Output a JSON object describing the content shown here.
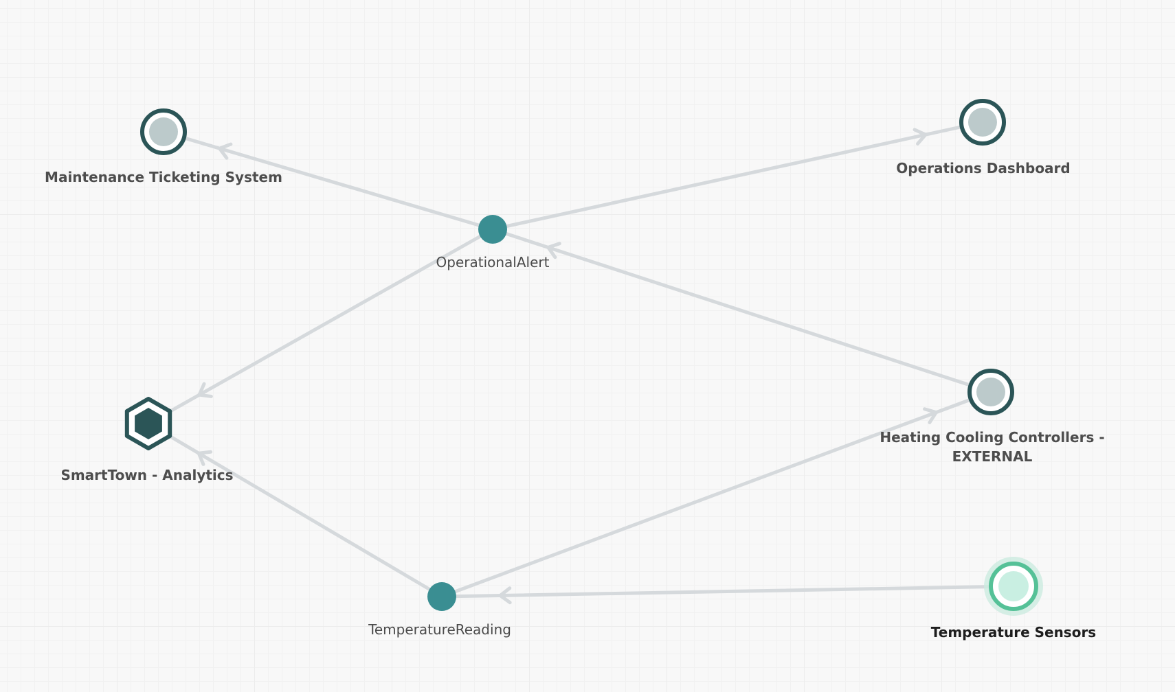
{
  "colors": {
    "edge": "#d5d9dc",
    "app_ring": "#2b5557",
    "app_fill": "#bccacb",
    "event": "#3a8e92",
    "selected_ring": "#55c197",
    "selected_fill": "#c9efe2",
    "selected_halo": "#ccebe0",
    "hex_fill": "#2b5557"
  },
  "nodes": {
    "maintenance": {
      "label": "Maintenance Ticketing System",
      "kind": "application"
    },
    "dashboard": {
      "label": "Operations Dashboard",
      "kind": "application"
    },
    "alert": {
      "label": "OperationalAlert",
      "kind": "event"
    },
    "smarttown": {
      "label": "SmartTown - Analytics",
      "kind": "hexagon"
    },
    "hvac": {
      "label": "Heating Cooling Controllers -\nEXTERNAL",
      "kind": "application"
    },
    "reading": {
      "label": "TemperatureReading",
      "kind": "event"
    },
    "sensors": {
      "label": "Temperature Sensors",
      "kind": "application-selected"
    }
  },
  "edges": [
    {
      "from": "alert",
      "to": "maintenance"
    },
    {
      "from": "alert",
      "to": "dashboard"
    },
    {
      "from": "hvac",
      "to": "alert"
    },
    {
      "from": "alert",
      "to": "smarttown"
    },
    {
      "from": "reading",
      "to": "smarttown"
    },
    {
      "from": "reading",
      "to": "hvac"
    },
    {
      "from": "sensors",
      "to": "reading"
    }
  ]
}
